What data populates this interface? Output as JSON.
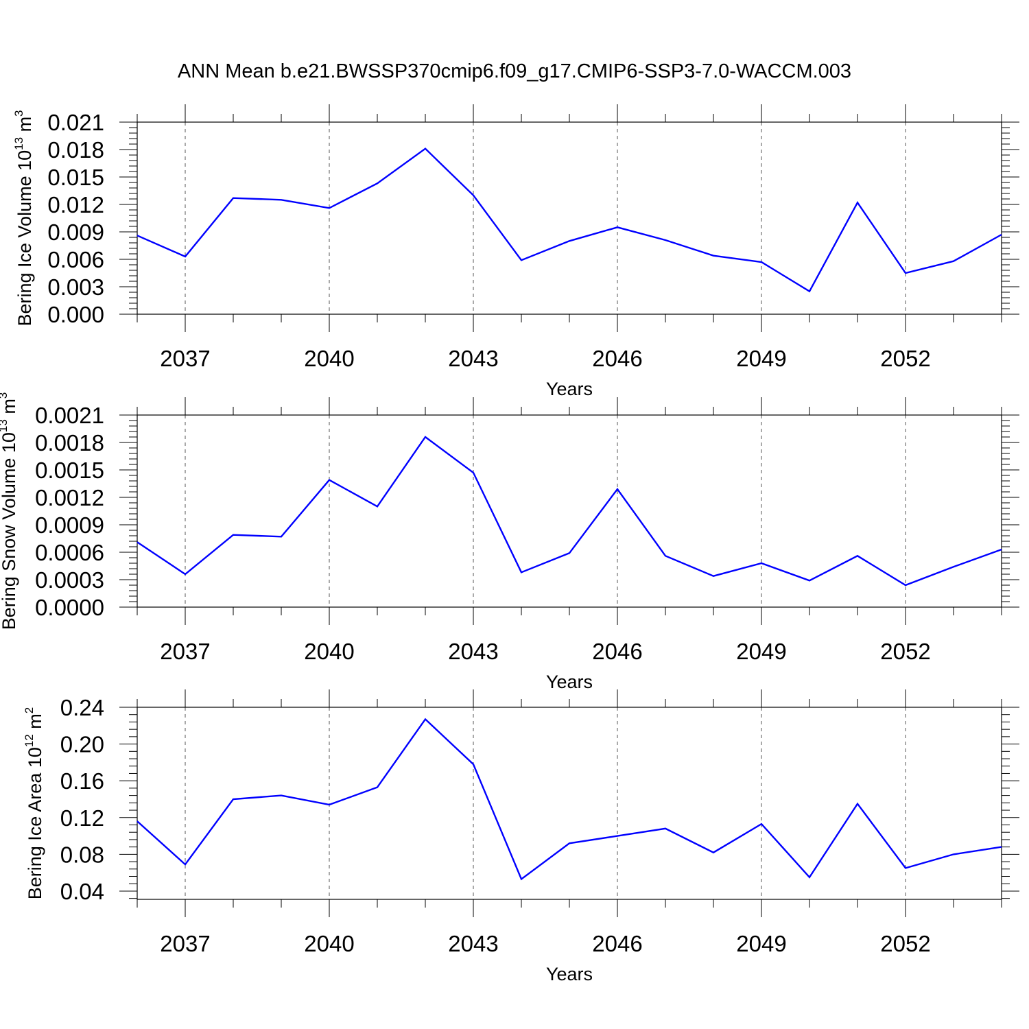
{
  "figure": {
    "title": "ANN Mean b.e21.BWSSP370cmip6.f09_g17.CMIP6-SSP3-7.0-WACCM.003"
  },
  "chart_data": [
    {
      "type": "line",
      "ylabel": "Bering Ice Volume 10",
      "ylabel_exp": "13",
      "ylabel_unit": " m",
      "ylabel_unit_exp": "3",
      "xlabel": "Years",
      "xlim": [
        2036,
        2054
      ],
      "ylim": [
        0.0,
        0.021
      ],
      "yticks": [
        "0.000",
        "0.003",
        "0.006",
        "0.009",
        "0.012",
        "0.015",
        "0.018",
        "0.021"
      ],
      "xticks": [
        "2037",
        "2040",
        "2043",
        "2046",
        "2049",
        "2052"
      ],
      "grid": "vertical dashed at labeled years",
      "series": [
        {
          "color": "#0000ff",
          "x": [
            2036,
            2037,
            2038,
            2039,
            2040,
            2041,
            2042,
            2043,
            2044,
            2045,
            2046,
            2047,
            2048,
            2049,
            2050,
            2051,
            2052,
            2053,
            2054
          ],
          "y": [
            0.0086,
            0.0063,
            0.0127,
            0.0125,
            0.0116,
            0.0143,
            0.0181,
            0.013,
            0.0059,
            0.008,
            0.0095,
            0.0081,
            0.0064,
            0.0057,
            0.0025,
            0.0122,
            0.0045,
            0.0058,
            0.0087
          ]
        }
      ]
    },
    {
      "type": "line",
      "ylabel": "Bering Snow Volume 10",
      "ylabel_exp": "13",
      "ylabel_unit": " m",
      "ylabel_unit_exp": "3",
      "xlabel": "Years",
      "xlim": [
        2036,
        2054
      ],
      "ylim": [
        0.0,
        0.0021
      ],
      "yticks": [
        "0.0000",
        "0.0003",
        "0.0006",
        "0.0009",
        "0.0012",
        "0.0015",
        "0.0018",
        "0.0021"
      ],
      "xticks": [
        "2037",
        "2040",
        "2043",
        "2046",
        "2049",
        "2052"
      ],
      "grid": "vertical dashed at labeled years",
      "series": [
        {
          "color": "#0000ff",
          "x": [
            2036,
            2037,
            2038,
            2039,
            2040,
            2041,
            2042,
            2043,
            2044,
            2045,
            2046,
            2047,
            2048,
            2049,
            2050,
            2051,
            2052,
            2053,
            2054
          ],
          "y": [
            0.00071,
            0.00036,
            0.00079,
            0.00077,
            0.00139,
            0.0011,
            0.00186,
            0.00147,
            0.00038,
            0.00059,
            0.00129,
            0.00056,
            0.00034,
            0.00048,
            0.00029,
            0.00056,
            0.00024,
            0.00044,
            0.00063
          ]
        }
      ]
    },
    {
      "type": "line",
      "ylabel": "Bering Ice Area 10",
      "ylabel_exp": "12",
      "ylabel_unit": " m",
      "ylabel_unit_exp": "2",
      "xlabel": "Years",
      "xlim": [
        2036,
        2054
      ],
      "ylim": [
        0.031,
        0.24
      ],
      "yticks": [
        "0.04",
        "0.08",
        "0.12",
        "0.16",
        "0.20",
        "0.24"
      ],
      "xticks": [
        "2037",
        "2040",
        "2043",
        "2046",
        "2049",
        "2052"
      ],
      "grid": "vertical dashed at labeled years",
      "series": [
        {
          "color": "#0000ff",
          "x": [
            2036,
            2037,
            2038,
            2039,
            2040,
            2041,
            2042,
            2043,
            2044,
            2045,
            2046,
            2047,
            2048,
            2049,
            2050,
            2051,
            2052,
            2053,
            2054
          ],
          "y": [
            0.116,
            0.069,
            0.14,
            0.144,
            0.134,
            0.153,
            0.227,
            0.178,
            0.053,
            0.092,
            0.1,
            0.108,
            0.082,
            0.113,
            0.055,
            0.135,
            0.065,
            0.08,
            0.088
          ]
        }
      ]
    }
  ]
}
